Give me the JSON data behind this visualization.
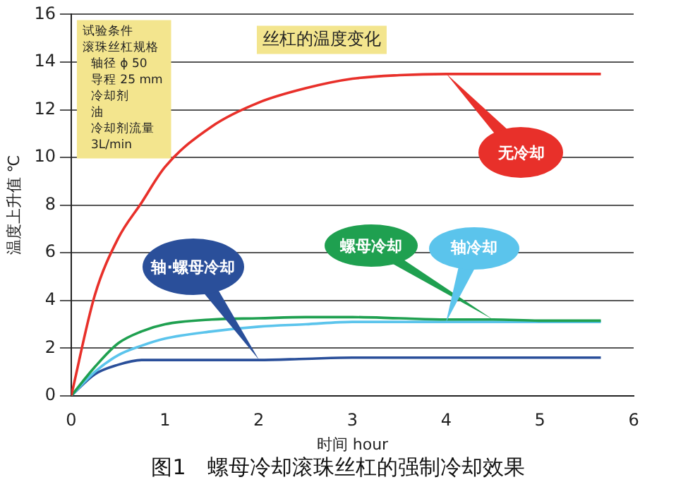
{
  "chart_data": {
    "type": "line",
    "title": "丝杠的温度变化",
    "xlabel": "时间 hour",
    "ylabel": "温度上升值 ℃",
    "x": [
      0,
      0.25,
      0.5,
      0.75,
      1,
      1.5,
      2,
      2.5,
      3,
      3.5,
      4,
      4.5,
      5,
      5.65
    ],
    "series": [
      {
        "name": "无冷却",
        "color": "#e8302a",
        "values": [
          0,
          4.2,
          6.6,
          8.1,
          9.6,
          11.3,
          12.3,
          12.9,
          13.3,
          13.45,
          13.5,
          13.5,
          13.5,
          13.5
        ]
      },
      {
        "name": "螺母冷却",
        "color": "#1fa050",
        "values": [
          0,
          1.2,
          2.2,
          2.7,
          3.0,
          3.2,
          3.25,
          3.3,
          3.3,
          3.25,
          3.2,
          3.2,
          3.15,
          3.15
        ]
      },
      {
        "name": "轴冷却",
        "color": "#5bc4ec",
        "values": [
          0,
          1.0,
          1.7,
          2.1,
          2.4,
          2.7,
          2.9,
          3.0,
          3.1,
          3.1,
          3.1,
          3.1,
          3.1,
          3.1
        ]
      },
      {
        "name": "轴·螺母冷却",
        "color": "#2a4f9a",
        "values": [
          0,
          0.9,
          1.3,
          1.5,
          1.5,
          1.5,
          1.5,
          1.55,
          1.6,
          1.6,
          1.6,
          1.6,
          1.6,
          1.6
        ]
      }
    ],
    "xlim": [
      0,
      6
    ],
    "xticks": [
      0,
      1,
      2,
      3,
      4,
      5,
      6
    ],
    "ylim": [
      0,
      16
    ],
    "yticks": [
      0,
      2,
      4,
      6,
      8,
      10,
      12,
      14,
      16
    ],
    "grid": "y",
    "legend": false,
    "marker": "none",
    "line_style": "solid",
    "annotations": [
      "试验条件",
      "滚珠丝杠规格",
      "轴径 ϕ 50",
      "导程 25 mm",
      "冷却剂",
      "油",
      "冷却剂流量",
      "3L/min",
      "图1　螺母冷却滚珠丝杠的强制冷却效果"
    ]
  }
}
